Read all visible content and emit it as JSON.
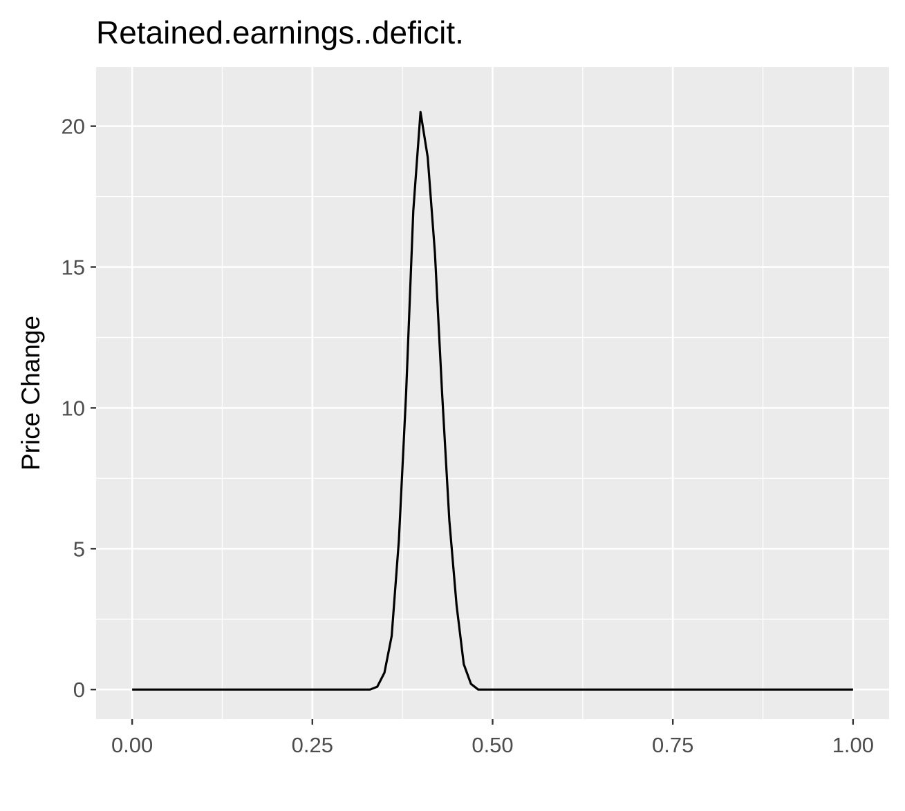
{
  "chart_data": {
    "type": "line",
    "title": "Retained.earnings..deficit.",
    "xlabel": "",
    "ylabel": "Price Change",
    "xlim": [
      -0.05,
      1.05
    ],
    "ylim": [
      -1.05,
      22.1
    ],
    "x_ticks": [
      0.0,
      0.25,
      0.5,
      0.75,
      1.0
    ],
    "x_tick_labels": [
      "0.00",
      "0.25",
      "0.50",
      "0.75",
      "1.00"
    ],
    "y_ticks": [
      0,
      5,
      10,
      15,
      20
    ],
    "y_tick_labels": [
      "0",
      "5",
      "10",
      "15",
      "20"
    ],
    "grid": true,
    "legend": "none",
    "colors": {
      "panel": "#ebebeb",
      "grid": "#ffffff",
      "line": "#000000",
      "tick_text": "#4d4d4d",
      "tick_mark": "#333333"
    },
    "series": [
      {
        "name": "Retained.earnings..deficit.",
        "x": [
          0.0,
          0.33,
          0.34,
          0.35,
          0.36,
          0.37,
          0.38,
          0.39,
          0.4,
          0.41,
          0.42,
          0.43,
          0.44,
          0.45,
          0.46,
          0.47,
          0.48,
          1.0
        ],
        "y": [
          0.0,
          0.0,
          0.1,
          0.6,
          1.9,
          5.3,
          10.5,
          17.0,
          20.5,
          18.9,
          15.5,
          10.5,
          6.0,
          3.0,
          0.9,
          0.2,
          0.0,
          0.0
        ]
      }
    ]
  }
}
